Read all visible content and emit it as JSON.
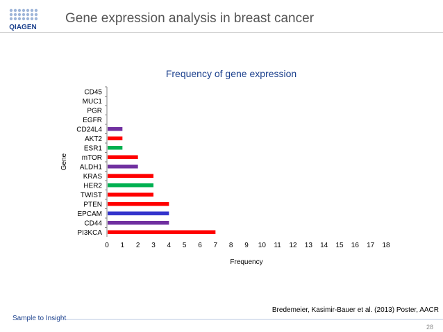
{
  "header": {
    "logo_text": "QIAGEN",
    "title": "Gene expression analysis in breast cancer"
  },
  "chart_data": {
    "type": "bar",
    "orientation": "horizontal",
    "title": "Frequency of gene expression",
    "xlabel": "Frequency",
    "ylabel": "Gene",
    "xlim": [
      0,
      18
    ],
    "xticks": [
      0,
      1,
      2,
      3,
      4,
      5,
      6,
      7,
      8,
      9,
      10,
      11,
      12,
      13,
      14,
      15,
      16,
      17,
      18
    ],
    "grid": false,
    "categories": [
      "CD45",
      "MUC1",
      "PGR",
      "EGFR",
      "CD24L4",
      "AKT2",
      "ESR1",
      "mTOR",
      "ALDH1",
      "KRAS",
      "HER2",
      "TWIST",
      "PTEN",
      "EPCAM",
      "CD44",
      "PI3KCA"
    ],
    "values": [
      0,
      0,
      0,
      0,
      1,
      1,
      1,
      2,
      2,
      3,
      3,
      3,
      4,
      4,
      4,
      7
    ],
    "colors": [
      "#ff0000",
      "#ff0000",
      "#ff0000",
      "#ff0000",
      "#7030a0",
      "#ff0000",
      "#00b050",
      "#ff0000",
      "#7030a0",
      "#ff0000",
      "#00b050",
      "#ff0000",
      "#ff0000",
      "#3333cc",
      "#7030a0",
      "#ff0000"
    ]
  },
  "footer": {
    "source": "Bredemeier, Kasimir-Bauer et al. (2013) Poster, AACR",
    "tagline": "Sample to Insight",
    "page_number": "28"
  },
  "theme": {
    "brand_blue": "#1a3f8c",
    "logo_dots": "#9fb6d9"
  }
}
